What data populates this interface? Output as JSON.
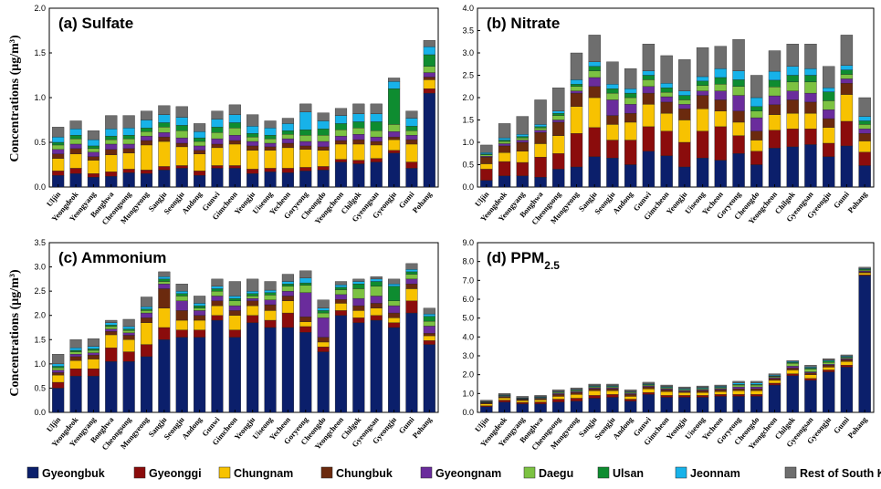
{
  "series_names": [
    "Gyeongbuk",
    "Gyeonggi",
    "Chungnam",
    "Chungbuk",
    "Gyeongnam",
    "Daegu",
    "Ulsan",
    "Jeonnam",
    "Rest of South Korea"
  ],
  "series_colors": [
    "#0b1f6b",
    "#8b0c0c",
    "#f7c201",
    "#6b2a0e",
    "#6a2c9c",
    "#7cc242",
    "#0e8c30",
    "#17b2e9",
    "#6e6e6e"
  ],
  "categories": [
    "Uljin",
    "Yeongdeok",
    "Yeongyang",
    "Bonghwa",
    "Cheongsong",
    "Mungyeong",
    "Sangju",
    "Seongju",
    "Andong",
    "Gunwi",
    "Gimcheon",
    "Yeongju",
    "Uiseong",
    "Yecheon",
    "Goryeong",
    "Cheongdo",
    "Yeongcheon",
    "Chilgok",
    "Gyeongsan",
    "Gyeongju",
    "Gumi",
    "Pohang"
  ],
  "ylabel": "Concentrations (μg/m³)",
  "chart_data": [
    {
      "type": "bar",
      "stacked": true,
      "title": "(a) Sulfate",
      "ylim": [
        0,
        2.0
      ],
      "yticks": [
        "0.0",
        "0.5",
        "1.0",
        "1.5",
        "2.0"
      ],
      "series": [
        {
          "name": "Gyeongbuk",
          "values": [
            0.13,
            0.15,
            0.11,
            0.12,
            0.16,
            0.15,
            0.19,
            0.21,
            0.13,
            0.21,
            0.21,
            0.15,
            0.17,
            0.16,
            0.18,
            0.19,
            0.28,
            0.26,
            0.28,
            0.38,
            0.21,
            1.05
          ]
        },
        {
          "name": "Gyeonggi",
          "values": [
            0.05,
            0.06,
            0.04,
            0.05,
            0.04,
            0.04,
            0.04,
            0.03,
            0.05,
            0.03,
            0.03,
            0.05,
            0.04,
            0.05,
            0.04,
            0.04,
            0.03,
            0.04,
            0.04,
            0.03,
            0.07,
            0.05
          ]
        },
        {
          "name": "Chungnam",
          "values": [
            0.14,
            0.16,
            0.15,
            0.19,
            0.18,
            0.28,
            0.28,
            0.21,
            0.19,
            0.2,
            0.24,
            0.21,
            0.2,
            0.23,
            0.2,
            0.18,
            0.17,
            0.18,
            0.15,
            0.12,
            0.2,
            0.1
          ]
        },
        {
          "name": "Chungbuk",
          "values": [
            0.05,
            0.06,
            0.04,
            0.06,
            0.05,
            0.05,
            0.05,
            0.04,
            0.04,
            0.04,
            0.04,
            0.05,
            0.04,
            0.05,
            0.04,
            0.04,
            0.04,
            0.05,
            0.04,
            0.03,
            0.05,
            0.03
          ]
        },
        {
          "name": "Gyeongnam",
          "values": [
            0.05,
            0.05,
            0.05,
            0.06,
            0.05,
            0.05,
            0.05,
            0.06,
            0.05,
            0.06,
            0.06,
            0.05,
            0.04,
            0.05,
            0.05,
            0.06,
            0.05,
            0.06,
            0.05,
            0.06,
            0.05,
            0.05
          ]
        },
        {
          "name": "Daegu",
          "values": [
            0.05,
            0.06,
            0.04,
            0.05,
            0.06,
            0.05,
            0.06,
            0.08,
            0.05,
            0.07,
            0.08,
            0.05,
            0.05,
            0.05,
            0.07,
            0.07,
            0.07,
            0.07,
            0.07,
            0.08,
            0.05,
            0.07
          ]
        },
        {
          "name": "Ulsan",
          "values": [
            0.03,
            0.04,
            0.03,
            0.04,
            0.04,
            0.04,
            0.05,
            0.06,
            0.04,
            0.06,
            0.06,
            0.04,
            0.04,
            0.04,
            0.06,
            0.07,
            0.07,
            0.07,
            0.1,
            0.4,
            0.05,
            0.13
          ]
        },
        {
          "name": "Jeonnam",
          "values": [
            0.06,
            0.07,
            0.07,
            0.08,
            0.08,
            0.09,
            0.09,
            0.09,
            0.07,
            0.09,
            0.09,
            0.08,
            0.08,
            0.08,
            0.2,
            0.09,
            0.09,
            0.09,
            0.09,
            0.08,
            0.09,
            0.09
          ]
        },
        {
          "name": "Rest of South Korea",
          "values": [
            0.11,
            0.09,
            0.1,
            0.15,
            0.14,
            0.1,
            0.1,
            0.12,
            0.09,
            0.09,
            0.11,
            0.13,
            0.08,
            0.06,
            0.09,
            0.09,
            0.08,
            0.11,
            0.11,
            0.04,
            0.08,
            0.07
          ]
        }
      ]
    },
    {
      "type": "bar",
      "stacked": true,
      "title": "(b) Nitrate",
      "ylim": [
        0,
        4.0
      ],
      "yticks": [
        "0.0",
        "0.5",
        "1.0",
        "1.5",
        "2.0",
        "2.5",
        "3.0",
        "3.5",
        "4.0"
      ],
      "series": [
        {
          "name": "Gyeongbuk",
          "values": [
            0.15,
            0.25,
            0.25,
            0.22,
            0.4,
            0.45,
            0.68,
            0.65,
            0.5,
            0.8,
            0.7,
            0.45,
            0.65,
            0.6,
            0.75,
            0.5,
            0.87,
            0.9,
            0.95,
            0.68,
            0.92,
            0.48
          ]
        },
        {
          "name": "Gyeonggi",
          "values": [
            0.25,
            0.32,
            0.3,
            0.45,
            0.35,
            0.75,
            0.65,
            0.4,
            0.55,
            0.55,
            0.55,
            0.55,
            0.6,
            0.75,
            0.4,
            0.3,
            0.4,
            0.4,
            0.35,
            0.3,
            0.55,
            0.3
          ]
        },
        {
          "name": "Chungnam",
          "values": [
            0.12,
            0.2,
            0.25,
            0.3,
            0.4,
            0.6,
            0.67,
            0.35,
            0.4,
            0.5,
            0.4,
            0.5,
            0.5,
            0.35,
            0.3,
            0.25,
            0.35,
            0.35,
            0.35,
            0.35,
            0.6,
            0.25
          ]
        },
        {
          "name": "Chungbuk",
          "values": [
            0.15,
            0.15,
            0.2,
            0.25,
            0.3,
            0.3,
            0.25,
            0.2,
            0.2,
            0.25,
            0.25,
            0.25,
            0.3,
            0.25,
            0.25,
            0.2,
            0.22,
            0.3,
            0.25,
            0.2,
            0.25,
            0.17
          ]
        },
        {
          "name": "Gyeongnam",
          "values": [
            0.02,
            0.05,
            0.05,
            0.05,
            0.05,
            0.05,
            0.2,
            0.35,
            0.2,
            0.15,
            0.12,
            0.1,
            0.1,
            0.2,
            0.35,
            0.3,
            0.2,
            0.2,
            0.2,
            0.2,
            0.1,
            0.1
          ]
        },
        {
          "name": "Daegu",
          "values": [
            0.03,
            0.05,
            0.05,
            0.05,
            0.1,
            0.1,
            0.15,
            0.15,
            0.15,
            0.15,
            0.1,
            0.1,
            0.12,
            0.15,
            0.2,
            0.15,
            0.2,
            0.2,
            0.25,
            0.2,
            0.1,
            0.1
          ]
        },
        {
          "name": "Ulsan",
          "values": [
            0.02,
            0.03,
            0.03,
            0.03,
            0.05,
            0.05,
            0.1,
            0.1,
            0.1,
            0.1,
            0.1,
            0.1,
            0.1,
            0.15,
            0.15,
            0.1,
            0.15,
            0.15,
            0.15,
            0.2,
            0.1,
            0.08
          ]
        },
        {
          "name": "Jeonnam",
          "values": [
            0.03,
            0.05,
            0.05,
            0.05,
            0.05,
            0.1,
            0.1,
            0.1,
            0.1,
            0.1,
            0.1,
            0.1,
            0.1,
            0.2,
            0.2,
            0.2,
            0.2,
            0.2,
            0.15,
            0.09,
            0.1,
            0.1
          ]
        },
        {
          "name": "Rest of South Korea",
          "values": [
            0.17,
            0.32,
            0.4,
            0.55,
            0.52,
            0.6,
            0.6,
            0.5,
            0.45,
            0.6,
            0.62,
            0.7,
            0.65,
            0.5,
            0.7,
            0.5,
            0.46,
            0.5,
            0.55,
            0.48,
            0.68,
            0.42
          ]
        }
      ]
    },
    {
      "type": "bar",
      "stacked": true,
      "title": "(c) Ammonium",
      "ylim": [
        0,
        3.5
      ],
      "yticks": [
        "0.0",
        "0.5",
        "1.0",
        "1.5",
        "2.0",
        "2.5",
        "3.0",
        "3.5"
      ],
      "series": [
        {
          "name": "Gyeongbuk",
          "values": [
            0.5,
            0.75,
            0.75,
            1.05,
            1.05,
            1.15,
            1.5,
            1.55,
            1.55,
            1.9,
            1.55,
            1.85,
            1.75,
            1.75,
            1.65,
            1.25,
            2.0,
            1.85,
            1.9,
            1.75,
            2.05,
            1.4
          ]
        },
        {
          "name": "Gyeonggi",
          "values": [
            0.12,
            0.15,
            0.15,
            0.28,
            0.2,
            0.25,
            0.25,
            0.15,
            0.15,
            0.1,
            0.15,
            0.15,
            0.15,
            0.3,
            0.12,
            0.1,
            0.1,
            0.1,
            0.1,
            0.1,
            0.25,
            0.08
          ]
        },
        {
          "name": "Chungnam",
          "values": [
            0.15,
            0.17,
            0.2,
            0.27,
            0.25,
            0.45,
            0.4,
            0.2,
            0.2,
            0.2,
            0.3,
            0.2,
            0.2,
            0.25,
            0.1,
            0.1,
            0.15,
            0.15,
            0.15,
            0.1,
            0.25,
            0.1
          ]
        },
        {
          "name": "Chungbuk",
          "values": [
            0.05,
            0.08,
            0.08,
            0.07,
            0.09,
            0.1,
            0.4,
            0.2,
            0.1,
            0.1,
            0.1,
            0.1,
            0.12,
            0.1,
            0.1,
            0.1,
            0.08,
            0.1,
            0.1,
            0.1,
            0.1,
            0.05
          ]
        },
        {
          "name": "Gyeongnam",
          "values": [
            0.05,
            0.05,
            0.05,
            0.05,
            0.05,
            0.1,
            0.1,
            0.2,
            0.1,
            0.1,
            0.1,
            0.05,
            0.1,
            0.1,
            0.5,
            0.4,
            0.1,
            0.15,
            0.15,
            0.15,
            0.1,
            0.15
          ]
        },
        {
          "name": "Daegu",
          "values": [
            0.05,
            0.05,
            0.05,
            0.05,
            0.05,
            0.05,
            0.05,
            0.1,
            0.05,
            0.1,
            0.1,
            0.05,
            0.1,
            0.1,
            0.15,
            0.1,
            0.1,
            0.2,
            0.2,
            0.1,
            0.1,
            0.1
          ]
        },
        {
          "name": "Ulsan",
          "values": [
            0.03,
            0.03,
            0.03,
            0.03,
            0.03,
            0.03,
            0.05,
            0.05,
            0.05,
            0.05,
            0.05,
            0.05,
            0.05,
            0.05,
            0.05,
            0.05,
            0.05,
            0.1,
            0.1,
            0.3,
            0.05,
            0.1
          ]
        },
        {
          "name": "Jeonnam",
          "values": [
            0.05,
            0.05,
            0.05,
            0.05,
            0.05,
            0.05,
            0.05,
            0.05,
            0.05,
            0.05,
            0.05,
            0.05,
            0.05,
            0.05,
            0.1,
            0.05,
            0.05,
            0.05,
            0.05,
            0.05,
            0.05,
            0.05
          ]
        },
        {
          "name": "Rest of South Korea",
          "values": [
            0.2,
            0.17,
            0.16,
            0.05,
            0.15,
            0.2,
            0.1,
            0.15,
            0.15,
            0.15,
            0.3,
            0.25,
            0.18,
            0.15,
            0.15,
            0.17,
            0.07,
            0.05,
            0.05,
            0.1,
            0.12,
            0.12
          ]
        }
      ]
    },
    {
      "type": "bar",
      "stacked": true,
      "title": "(d) PPM",
      "title_sub": "2.5",
      "ylim": [
        0,
        9.0
      ],
      "yticks": [
        "0.0",
        "1.0",
        "2.0",
        "3.0",
        "4.0",
        "5.0",
        "6.0",
        "7.0",
        "8.0",
        "9.0"
      ],
      "series": [
        {
          "name": "Gyeongbuk",
          "values": [
            0.3,
            0.55,
            0.45,
            0.45,
            0.55,
            0.6,
            0.75,
            0.8,
            0.6,
            0.95,
            0.8,
            0.8,
            0.8,
            0.85,
            0.85,
            0.85,
            1.45,
            1.95,
            1.7,
            2.15,
            2.4,
            7.25
          ]
        },
        {
          "name": "Gyeonggi",
          "values": [
            0.05,
            0.1,
            0.08,
            0.1,
            0.15,
            0.15,
            0.15,
            0.15,
            0.1,
            0.1,
            0.1,
            0.1,
            0.1,
            0.1,
            0.1,
            0.1,
            0.1,
            0.1,
            0.1,
            0.1,
            0.1,
            0.05
          ]
        },
        {
          "name": "Chungnam",
          "values": [
            0.1,
            0.12,
            0.1,
            0.12,
            0.15,
            0.2,
            0.25,
            0.2,
            0.15,
            0.2,
            0.2,
            0.15,
            0.15,
            0.15,
            0.2,
            0.2,
            0.15,
            0.2,
            0.2,
            0.15,
            0.2,
            0.1
          ]
        },
        {
          "name": "Chungbuk",
          "values": [
            0.05,
            0.05,
            0.05,
            0.05,
            0.1,
            0.1,
            0.1,
            0.1,
            0.1,
            0.1,
            0.1,
            0.05,
            0.1,
            0.1,
            0.1,
            0.1,
            0.1,
            0.1,
            0.1,
            0.1,
            0.1,
            0.05
          ]
        },
        {
          "name": "Gyeongnam",
          "values": [
            0.02,
            0.03,
            0.02,
            0.03,
            0.05,
            0.05,
            0.05,
            0.05,
            0.05,
            0.05,
            0.05,
            0.05,
            0.05,
            0.05,
            0.1,
            0.1,
            0.05,
            0.1,
            0.05,
            0.05,
            0.05,
            0.05
          ]
        },
        {
          "name": "Daegu",
          "values": [
            0.02,
            0.03,
            0.02,
            0.03,
            0.05,
            0.05,
            0.05,
            0.05,
            0.05,
            0.05,
            0.05,
            0.05,
            0.05,
            0.05,
            0.1,
            0.1,
            0.05,
            0.15,
            0.15,
            0.1,
            0.05,
            0.05
          ]
        },
        {
          "name": "Ulsan",
          "values": [
            0.02,
            0.02,
            0.02,
            0.02,
            0.03,
            0.03,
            0.03,
            0.03,
            0.03,
            0.03,
            0.03,
            0.03,
            0.03,
            0.03,
            0.03,
            0.03,
            0.03,
            0.05,
            0.05,
            0.08,
            0.03,
            0.05
          ]
        },
        {
          "name": "Jeonnam",
          "values": [
            0.02,
            0.03,
            0.03,
            0.03,
            0.03,
            0.03,
            0.04,
            0.04,
            0.03,
            0.04,
            0.04,
            0.04,
            0.04,
            0.05,
            0.08,
            0.08,
            0.05,
            0.05,
            0.05,
            0.04,
            0.05,
            0.03
          ]
        },
        {
          "name": "Rest of South Korea",
          "values": [
            0.07,
            0.07,
            0.08,
            0.07,
            0.09,
            0.09,
            0.08,
            0.08,
            0.09,
            0.08,
            0.08,
            0.08,
            0.08,
            0.07,
            0.09,
            0.09,
            0.07,
            0.05,
            0.1,
            0.08,
            0.07,
            0.07
          ]
        }
      ]
    }
  ]
}
